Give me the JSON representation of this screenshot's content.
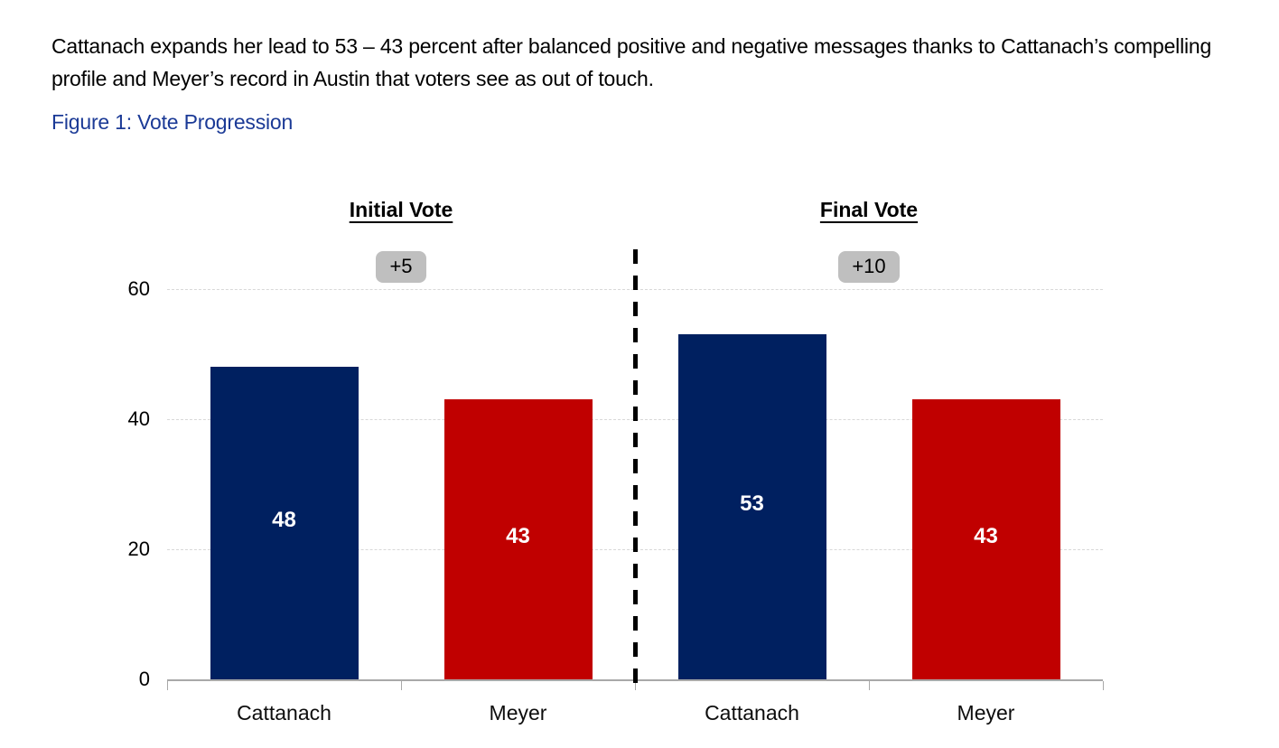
{
  "page": {
    "paragraph": "Cattanach expands her lead to 53 – 43 percent after balanced positive and negative messages thanks to Cattanach’s compelling profile and Meyer’s record in Austin that voters see as out of touch.",
    "figure_label": "Figure 1: Vote Progression"
  },
  "colors": {
    "figure_label_blue": "#1B3A96",
    "cattanach_navy": "#002060",
    "meyer_red": "#C00000",
    "badge_gray": "#BFBFBF",
    "gridline_gray": "#D8D8D8",
    "axis_gray": "#A9A9A9",
    "value_label_white": "#FFFFFF",
    "text_black": "#000000"
  },
  "chart_data": {
    "type": "bar",
    "title": "Vote Progression",
    "xlabel": "",
    "ylabel": "",
    "ylim": [
      0,
      60
    ],
    "yticks": [
      0,
      20,
      40,
      60
    ],
    "grid": "horizontal dashed gridlines at 20, 40, 60",
    "legend_position": "none",
    "divider": "vertical black dashed line between Initial Vote and Final Vote groups",
    "groups": [
      {
        "header": "Initial Vote",
        "badge": "+5",
        "bars": [
          {
            "label": "Cattanach",
            "value": 48,
            "color": "#002060"
          },
          {
            "label": "Meyer",
            "value": 43,
            "color": "#C00000"
          }
        ]
      },
      {
        "header": "Final Vote",
        "badge": "+10",
        "bars": [
          {
            "label": "Cattanach",
            "value": 53,
            "color": "#002060"
          },
          {
            "label": "Meyer",
            "value": 43,
            "color": "#C00000"
          }
        ]
      }
    ]
  }
}
